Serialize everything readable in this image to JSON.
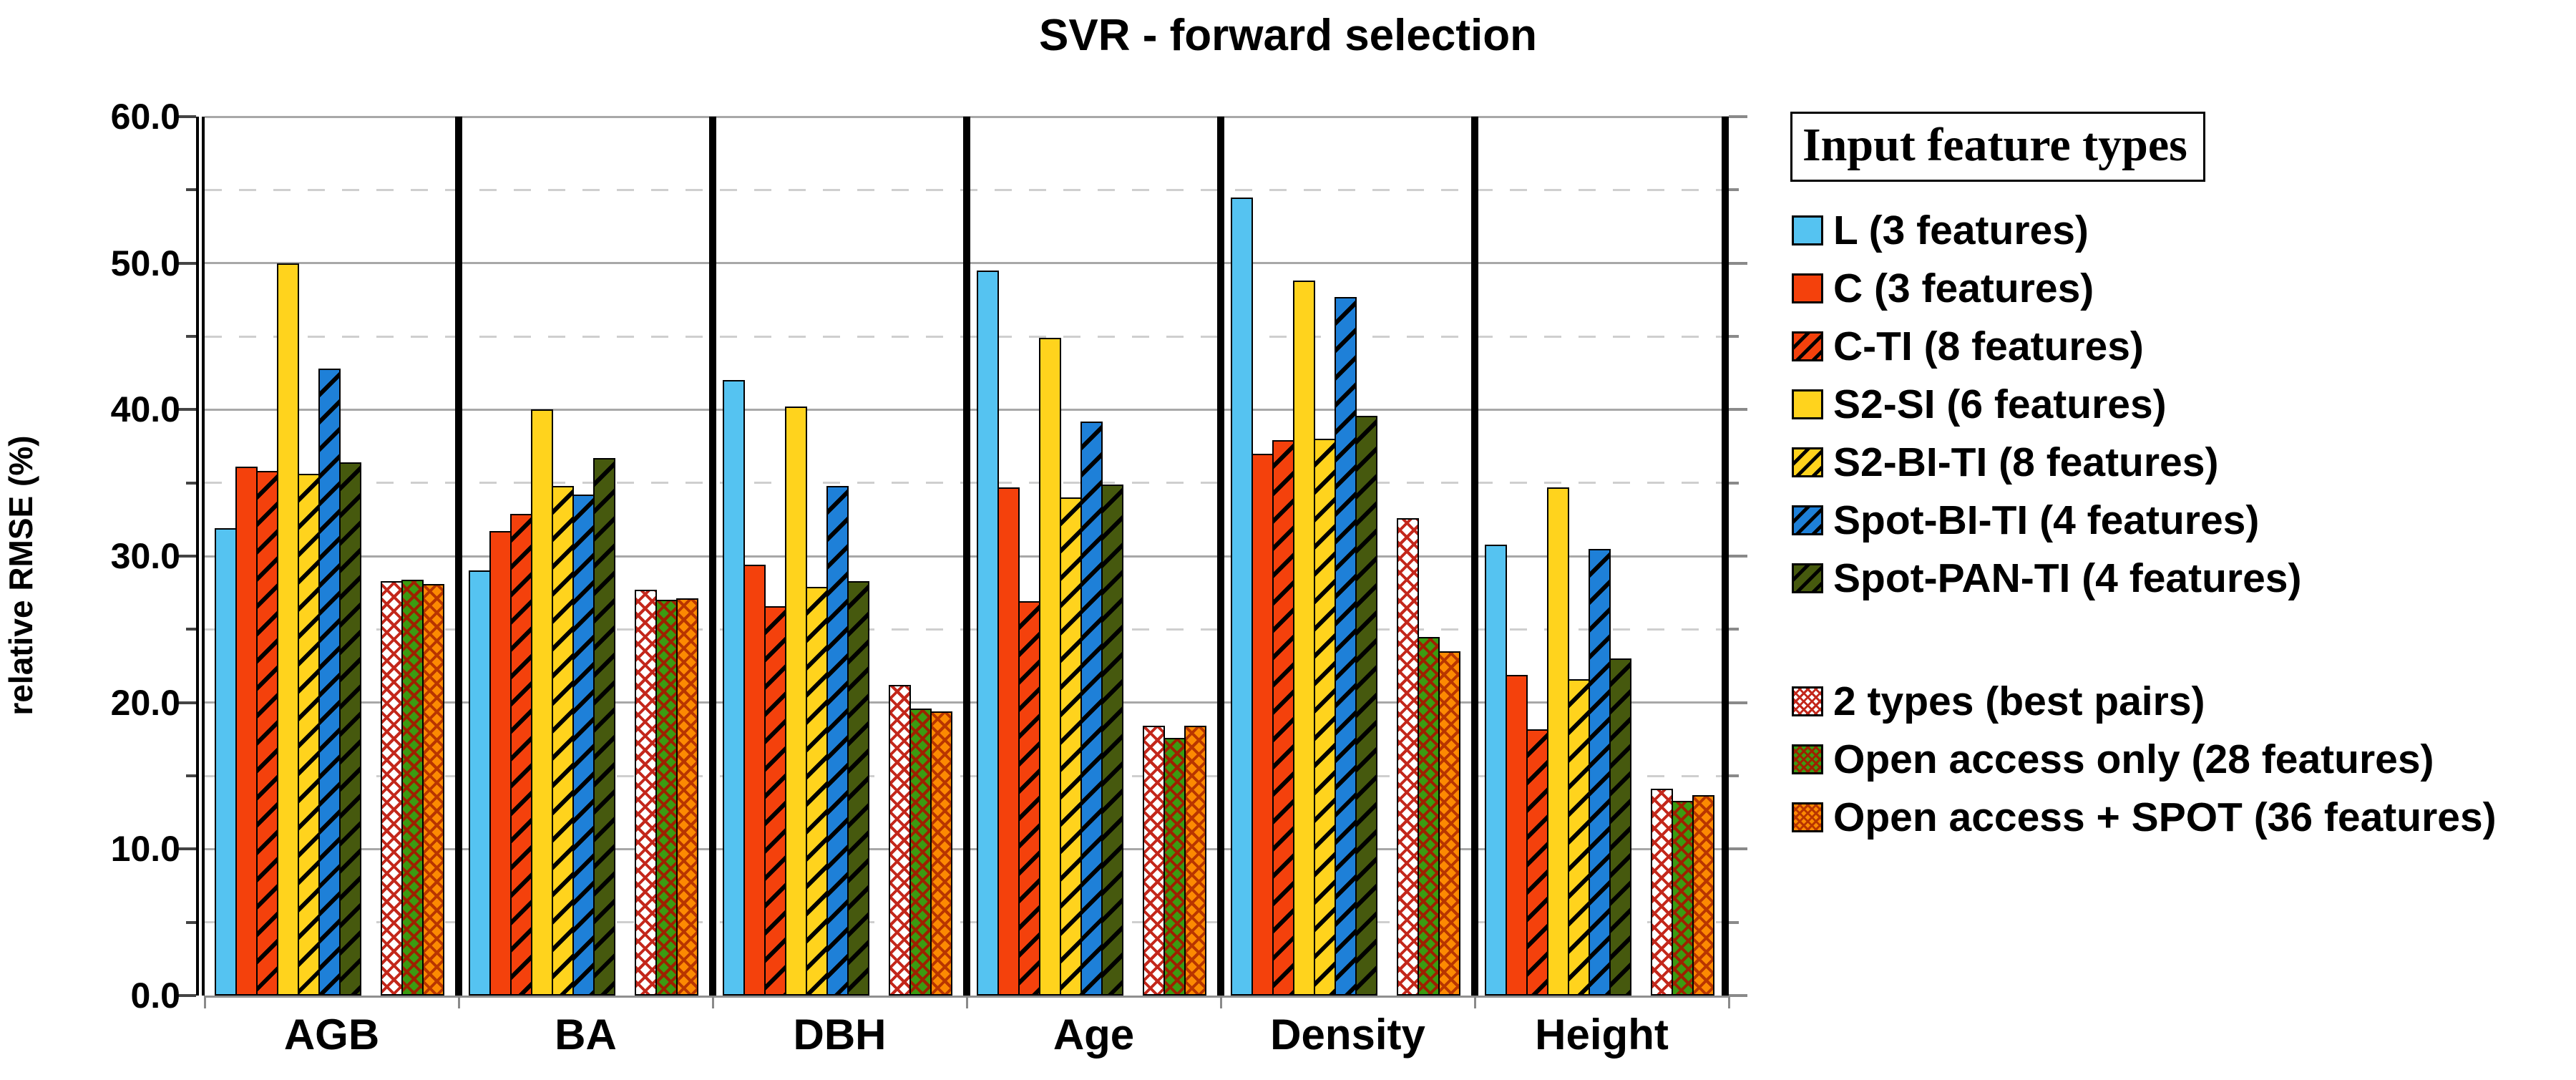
{
  "title": "SVR - forward selection",
  "y_axis": {
    "label": "relative RMSE (%)",
    "min": 0,
    "max": 60,
    "major_step": 10,
    "minor_step": 5
  },
  "legend": {
    "title": "Input feature types"
  },
  "chart_data": {
    "type": "bar",
    "title": "SVR - forward selection",
    "xlabel": "",
    "ylabel": "relative RMSE (%)",
    "ylim": [
      0,
      60
    ],
    "grid": "horizontal: solid every 10, dashed every 5; vertical black separators between category panels",
    "legend_position": "right",
    "categories": [
      "AGB",
      "BA",
      "DBH",
      "Age",
      "Density",
      "Height"
    ],
    "series": [
      {
        "name": "L (3 features)",
        "color": "#55C3F1",
        "pattern": "solid",
        "pattern_color": null,
        "group": 1,
        "values": [
          31.9,
          29.0,
          42.0,
          49.5,
          54.5,
          30.8
        ]
      },
      {
        "name": "C (3 features)",
        "color": "#F4410C",
        "pattern": "solid",
        "pattern_color": null,
        "group": 1,
        "values": [
          36.1,
          31.7,
          29.4,
          34.7,
          37.0,
          21.9
        ]
      },
      {
        "name": "C-TI (8 features)",
        "color": "#F4410C",
        "pattern": "hatch",
        "pattern_color": "#000000",
        "group": 1,
        "values": [
          35.8,
          32.9,
          26.6,
          26.9,
          37.9,
          18.2
        ]
      },
      {
        "name": "S2-SI (6 features)",
        "color": "#FFD31D",
        "pattern": "solid",
        "pattern_color": null,
        "group": 1,
        "values": [
          50.0,
          40.0,
          40.2,
          44.9,
          48.8,
          34.7
        ]
      },
      {
        "name": "S2-BI-TI (8 features)",
        "color": "#FFD31D",
        "pattern": "hatch",
        "pattern_color": "#000000",
        "group": 1,
        "values": [
          35.6,
          34.8,
          27.9,
          34.0,
          38.0,
          21.6
        ]
      },
      {
        "name": "Spot-BI-TI (4 features)",
        "color": "#1E80D8",
        "pattern": "hatch",
        "pattern_color": "#000000",
        "group": 1,
        "values": [
          42.8,
          34.2,
          34.8,
          39.2,
          47.7,
          30.5
        ]
      },
      {
        "name": "Spot-PAN-TI (4 features)",
        "color": "#46590E",
        "pattern": "hatch",
        "pattern_color": "#000000",
        "group": 1,
        "values": [
          36.4,
          36.7,
          28.3,
          34.9,
          39.6,
          23.0
        ]
      },
      {
        "name": "2 types (best pairs)",
        "color": "#FFFFFF",
        "pattern": "crosshatch",
        "pattern_color": "#C3271B",
        "group": 2,
        "values": [
          28.3,
          27.7,
          21.2,
          18.4,
          32.6,
          14.1
        ]
      },
      {
        "name": "Open access only (28 features)",
        "color": "#3B9B11",
        "pattern": "crosshatch",
        "pattern_color": "#9E2000",
        "group": 2,
        "values": [
          28.4,
          27.0,
          19.6,
          17.6,
          24.5,
          13.3
        ]
      },
      {
        "name": "Open access + SPOT (36 features)",
        "color": "#FC8A02",
        "pattern": "crosshatch",
        "pattern_color": "#B83500",
        "group": 2,
        "values": [
          28.1,
          27.1,
          19.4,
          18.4,
          23.5,
          13.7
        ]
      }
    ]
  }
}
